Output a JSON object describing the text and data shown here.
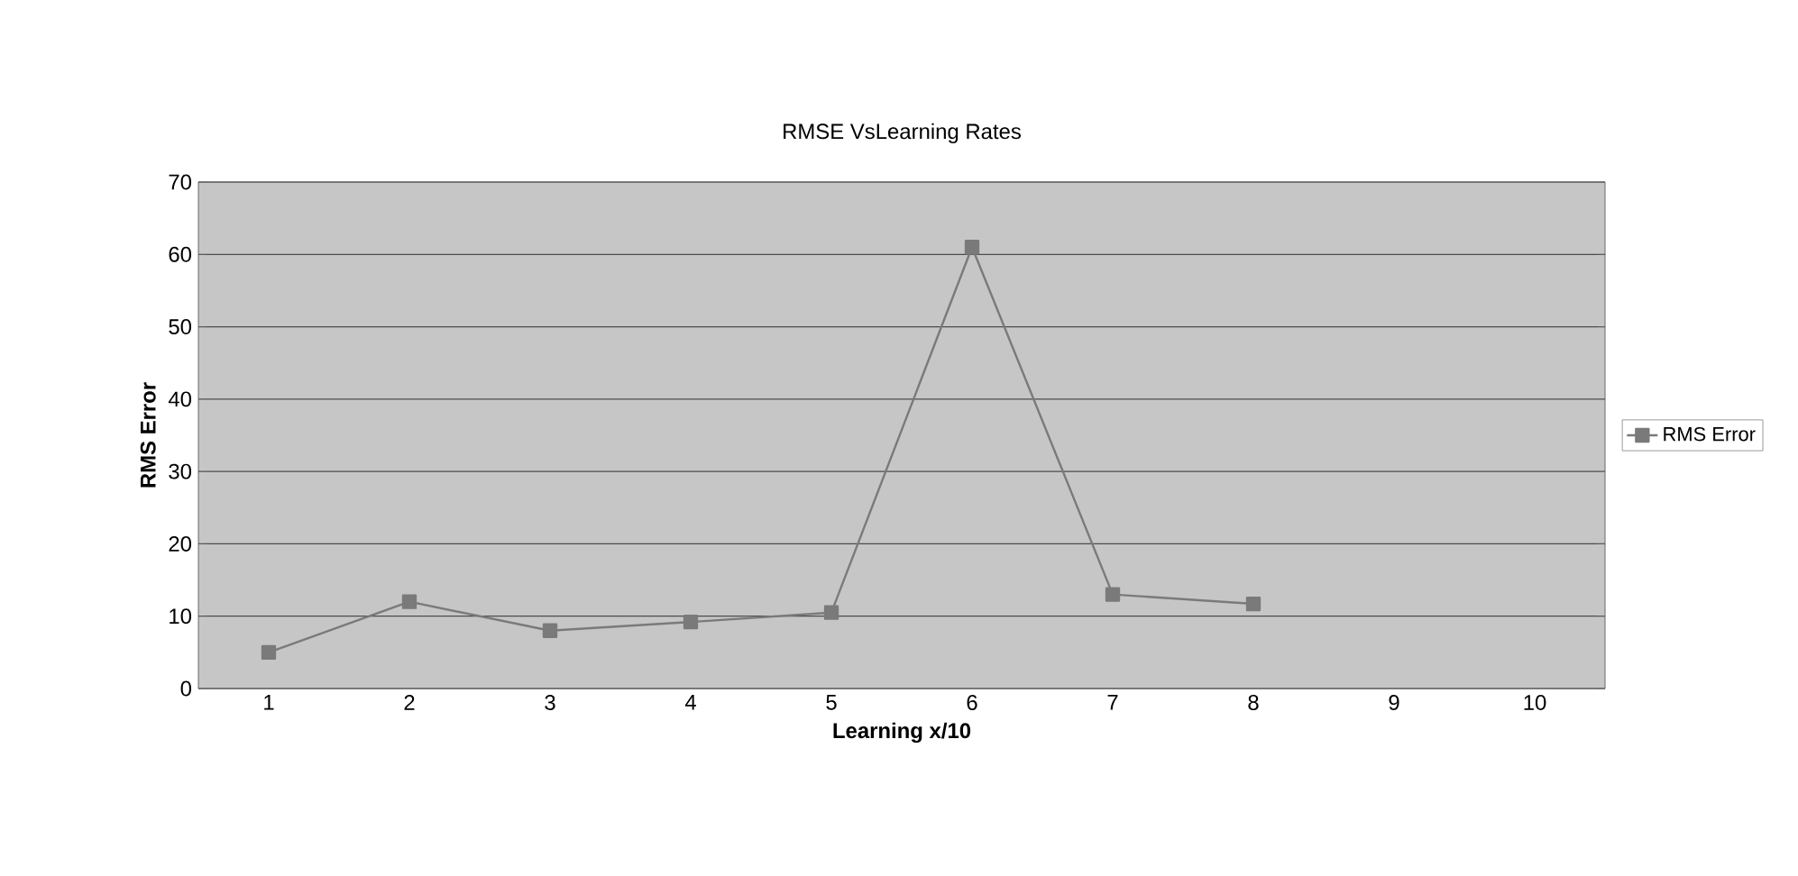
{
  "chart_data": {
    "type": "line",
    "title": "RMSE VsLearning Rates",
    "xlabel": "Learning x/10",
    "ylabel": "RMS Error",
    "categories": [
      "1",
      "2",
      "3",
      "4",
      "5",
      "6",
      "7",
      "8",
      "9",
      "10"
    ],
    "series": [
      {
        "name": "RMS Error",
        "color": "#7a7a7a",
        "values": [
          5,
          12,
          8,
          9.2,
          10.5,
          61,
          13,
          11.7,
          null,
          null
        ]
      }
    ],
    "ylim": [
      0,
      70
    ],
    "yticks": [
      0,
      10,
      20,
      30,
      40,
      50,
      60,
      70
    ],
    "grid": "y",
    "legend": "right",
    "marker": "square",
    "line_style": "solid"
  }
}
